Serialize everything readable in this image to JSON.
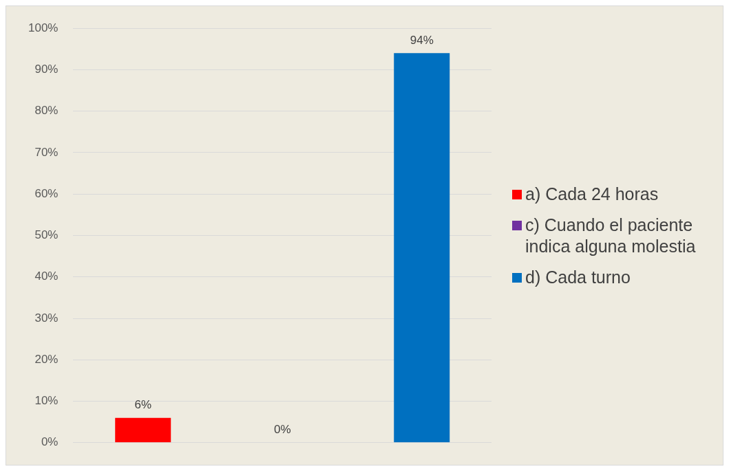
{
  "chart_data": {
    "type": "bar",
    "categories": [
      null
    ],
    "series": [
      {
        "name": "a) Cada 24 horas",
        "color": "#ff0000",
        "values": [
          6
        ],
        "value_labels": [
          "6%"
        ]
      },
      {
        "name": "c) Cuando el paciente indica alguna molestia",
        "color": "#7030a0",
        "values": [
          0
        ],
        "value_labels": [
          "0%"
        ]
      },
      {
        "name": "d) Cada turno",
        "color": "#0070c0",
        "values": [
          94
        ],
        "value_labels": [
          "94%"
        ]
      }
    ],
    "ylim": [
      0,
      100
    ],
    "yticks": [
      {
        "value": 0,
        "label": "0%"
      },
      {
        "value": 10,
        "label": "10%"
      },
      {
        "value": 20,
        "label": "20%"
      },
      {
        "value": 30,
        "label": "30%"
      },
      {
        "value": 40,
        "label": "40%"
      },
      {
        "value": 50,
        "label": "50%"
      },
      {
        "value": 60,
        "label": "60%"
      },
      {
        "value": 70,
        "label": "70%"
      },
      {
        "value": 80,
        "label": "80%"
      },
      {
        "value": 90,
        "label": "90%"
      },
      {
        "value": 100,
        "label": "100%"
      }
    ],
    "grid": "y",
    "legend": "right"
  }
}
